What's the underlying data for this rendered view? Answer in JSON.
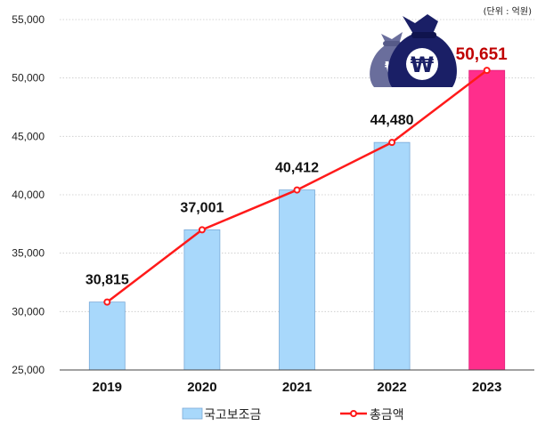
{
  "unit_label": "(단위 : 억원)",
  "icon": "money-bag-won-icon",
  "chart_data": {
    "type": "bar",
    "categories": [
      "2019",
      "2020",
      "2021",
      "2022",
      "2023"
    ],
    "series": [
      {
        "name": "국고보조금",
        "type": "bar",
        "values": [
          30815,
          37001,
          40412,
          44480,
          50651
        ],
        "color": "#a8d8fb",
        "highlight_color": "#ff2e8c",
        "highlight_index": 4
      },
      {
        "name": "총금액",
        "type": "line",
        "values": [
          30815,
          37001,
          40412,
          44480,
          50651
        ],
        "color": "#ff1a1a"
      }
    ],
    "data_labels": [
      "30,815",
      "37,001",
      "40,412",
      "44,480",
      "50,651"
    ],
    "ylim": [
      25000,
      55000
    ],
    "yticks": [
      25000,
      30000,
      35000,
      40000,
      45000,
      50000,
      55000
    ],
    "ytick_labels": [
      "25,000",
      "30,000",
      "35,000",
      "40,000",
      "45,000",
      "50,000",
      "55,000"
    ],
    "grid": true,
    "legend_position": "bottom-center"
  }
}
